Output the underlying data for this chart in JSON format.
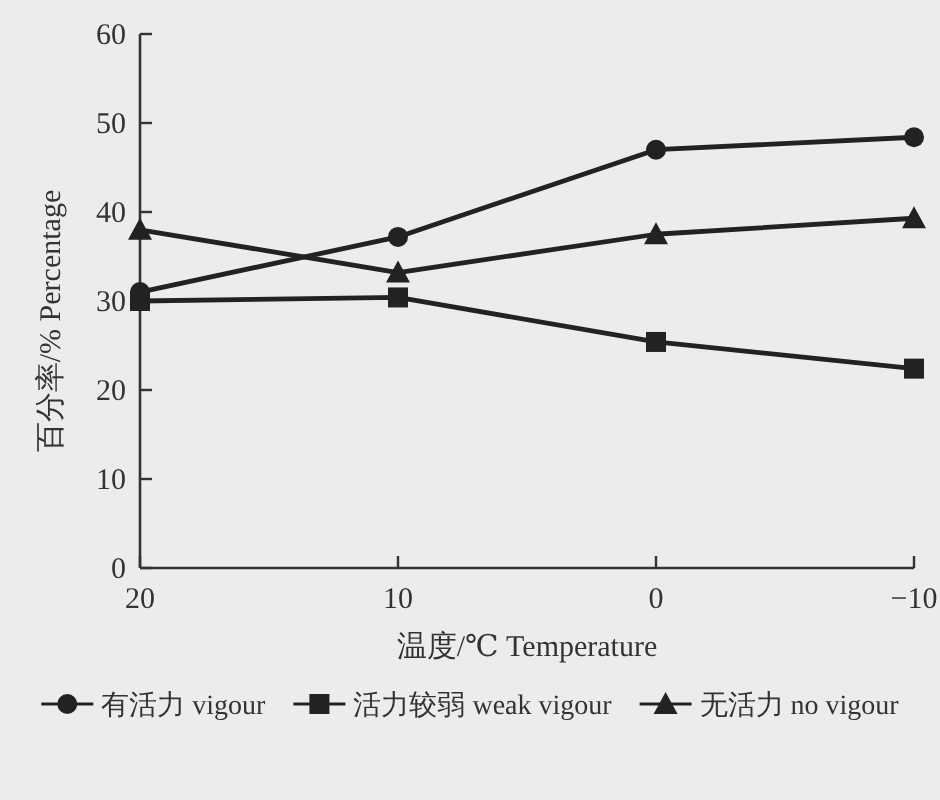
{
  "chart_data": {
    "type": "line",
    "xlabel": "温度/℃  Temperature",
    "ylabel": "百分率/%  Percentage",
    "x": [
      20,
      10,
      0,
      -10
    ],
    "xlim": [
      20,
      -10
    ],
    "xticks": [
      20,
      10,
      0,
      {
        "value": -10,
        "label": "−10"
      }
    ],
    "ylim": [
      0,
      60
    ],
    "yticks": [
      0,
      10,
      20,
      30,
      40,
      50,
      60
    ],
    "grid": false,
    "legend": "bottom",
    "line_style": "solid",
    "series": [
      {
        "name": "有活力 vigour",
        "color": "#222222",
        "marker": "circle",
        "values": [
          31,
          37.2,
          47,
          48.4
        ]
      },
      {
        "name": "活力较弱 weak vigour",
        "color": "#222222",
        "marker": "square",
        "values": [
          30,
          30.4,
          25.4,
          22.4
        ]
      },
      {
        "name": "无活力 no vigour",
        "color": "#222222",
        "marker": "triangle",
        "values": [
          38,
          33.2,
          37.5,
          39.3
        ]
      }
    ]
  }
}
